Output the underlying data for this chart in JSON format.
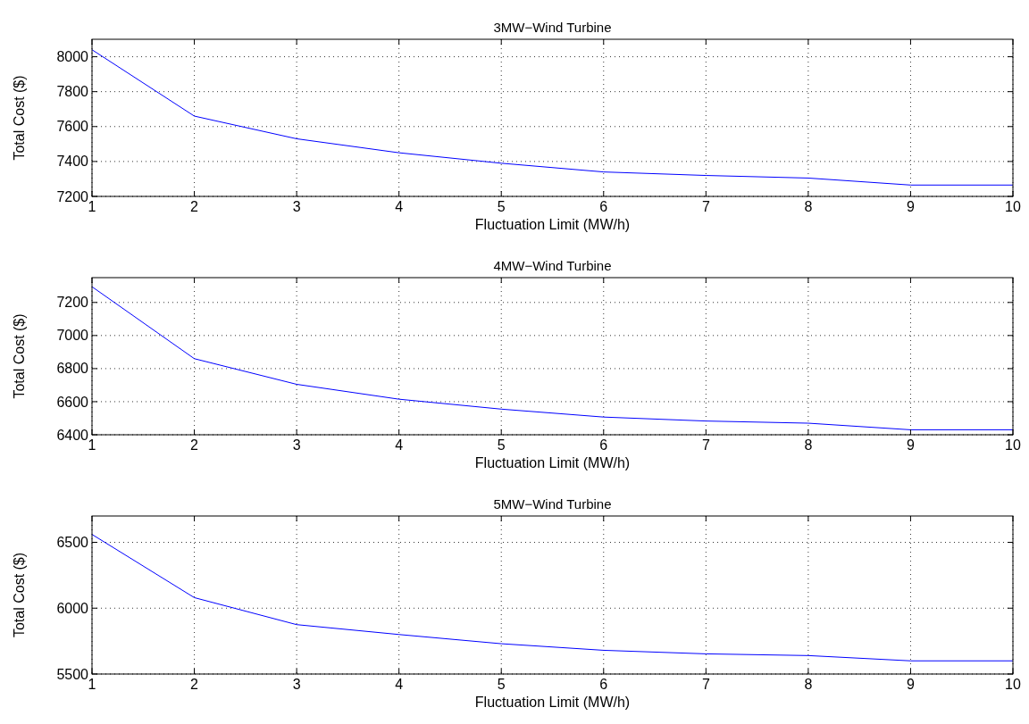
{
  "chart_data": [
    {
      "type": "line",
      "title": "3MW−Wind Turbine",
      "xlabel": "Fluctuation Limit (MW/h)",
      "ylabel": "Total Cost ($)",
      "x": [
        1,
        2,
        3,
        4,
        5,
        6,
        7,
        8,
        9,
        10
      ],
      "series": [
        {
          "color": "#0000ff",
          "values": [
            8040,
            7660,
            7530,
            7450,
            7390,
            7340,
            7320,
            7305,
            7265,
            7265
          ]
        }
      ],
      "xlim": [
        1,
        10
      ],
      "xticks": [
        1,
        2,
        3,
        4,
        5,
        6,
        7,
        8,
        9,
        10
      ],
      "ylim": [
        7200,
        8100
      ],
      "yticks": [
        7200,
        7400,
        7600,
        7800,
        8000
      ],
      "grid": true,
      "line_style": "solid"
    },
    {
      "type": "line",
      "title": "4MW−Wind Turbine",
      "xlabel": "Fluctuation Limit (MW/h)",
      "ylabel": "Total Cost ($)",
      "x": [
        1,
        2,
        3,
        4,
        5,
        6,
        7,
        8,
        9,
        10
      ],
      "series": [
        {
          "color": "#0000ff",
          "values": [
            7295,
            6860,
            6705,
            6615,
            6555,
            6507,
            6483,
            6470,
            6430,
            6430
          ]
        }
      ],
      "xlim": [
        1,
        10
      ],
      "xticks": [
        1,
        2,
        3,
        4,
        5,
        6,
        7,
        8,
        9,
        10
      ],
      "ylim": [
        6400,
        7350
      ],
      "yticks": [
        6400,
        6600,
        6800,
        7000,
        7200
      ],
      "grid": true,
      "line_style": "solid"
    },
    {
      "type": "line",
      "title": "5MW−Wind Turbine",
      "xlabel": "Fluctuation Limit (MW/h)",
      "ylabel": "Total Cost ($)",
      "x": [
        1,
        2,
        3,
        4,
        5,
        6,
        7,
        8,
        9,
        10
      ],
      "series": [
        {
          "color": "#0000ff",
          "values": [
            6560,
            6080,
            5875,
            5800,
            5730,
            5680,
            5653,
            5640,
            5600,
            5600
          ]
        }
      ],
      "xlim": [
        1,
        10
      ],
      "xticks": [
        1,
        2,
        3,
        4,
        5,
        6,
        7,
        8,
        9,
        10
      ],
      "ylim": [
        5500,
        6700
      ],
      "yticks": [
        5500,
        6000,
        6500
      ],
      "grid": true,
      "line_style": "solid"
    }
  ]
}
